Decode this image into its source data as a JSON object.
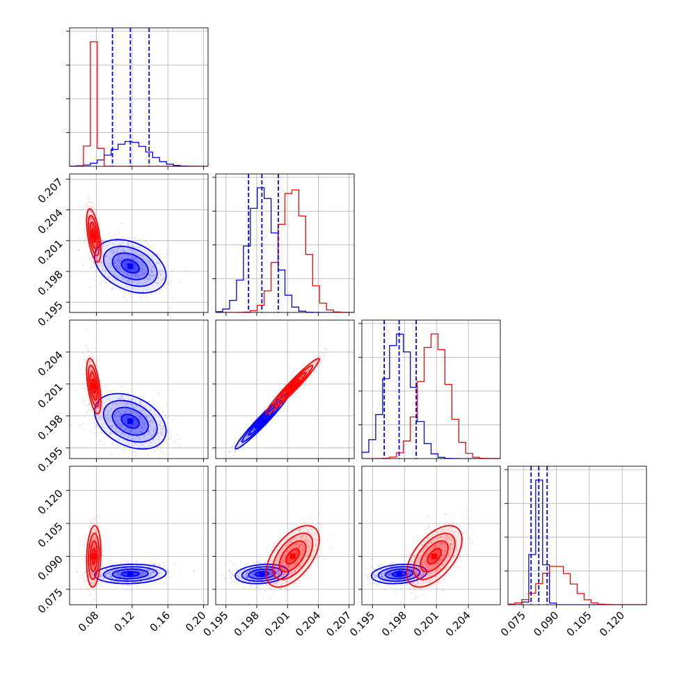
{
  "chart_data": {
    "type": "corner",
    "colors": {
      "series_a": "#0000ff",
      "series_b": "#ff0000"
    },
    "grid": true,
    "axes": [
      {
        "range": [
          0.05,
          0.205
        ],
        "ticks": [
          0.08,
          0.12,
          0.16,
          0.2
        ],
        "tick_labels": [
          "0.08",
          "0.12",
          "0.16",
          "0.20"
        ]
      },
      {
        "range": [
          0.194,
          0.2075
        ],
        "ticks": [
          0.195,
          0.198,
          0.201,
          0.204,
          0.207
        ],
        "tick_labels": [
          "0.195",
          "0.198",
          "0.201",
          "0.204",
          "0.207"
        ]
      },
      {
        "range": [
          0.194,
          0.207
        ],
        "ticks": [
          0.195,
          0.198,
          0.201,
          0.204
        ],
        "tick_labels": [
          "0.195",
          "0.198",
          "0.201",
          "0.204"
        ]
      },
      {
        "range": [
          0.068,
          0.131
        ],
        "ticks": [
          0.075,
          0.09,
          0.105,
          0.12
        ],
        "tick_labels": [
          "0.075",
          "0.090",
          "0.105",
          "0.120"
        ]
      }
    ],
    "series": [
      {
        "color": "#0000ff",
        "mean": [
          0.118,
          0.1985,
          0.1975,
          0.082
        ],
        "std": [
          0.02,
          0.0013,
          0.0013,
          0.0022
        ],
        "quantiles": [
          [
            0.098,
            0.118,
            0.139
          ],
          [
            0.1972,
            0.1985,
            0.2001
          ],
          [
            0.1961,
            0.1975,
            0.1991
          ],
          [
            0.0785,
            0.082,
            0.0858
          ]
        ]
      },
      {
        "color": "#ff0000",
        "mean": [
          0.077,
          0.2015,
          0.2008,
          0.09
        ],
        "std": [
          0.004,
          0.0013,
          0.0013,
          0.007
        ]
      }
    ],
    "correlations": {
      "series_a": [
        [
          0,
          1,
          -0.35
        ],
        [
          0,
          2,
          -0.35
        ],
        [
          0,
          3,
          0.1
        ],
        [
          1,
          2,
          0.97
        ],
        [
          1,
          3,
          0.2
        ],
        [
          2,
          3,
          0.2
        ]
      ],
      "series_b": [
        [
          0,
          1,
          -0.55
        ],
        [
          0,
          2,
          -0.55
        ],
        [
          0,
          3,
          0.15
        ],
        [
          1,
          2,
          0.97
        ],
        [
          1,
          3,
          0.55
        ],
        [
          2,
          3,
          0.55
        ]
      ]
    }
  }
}
